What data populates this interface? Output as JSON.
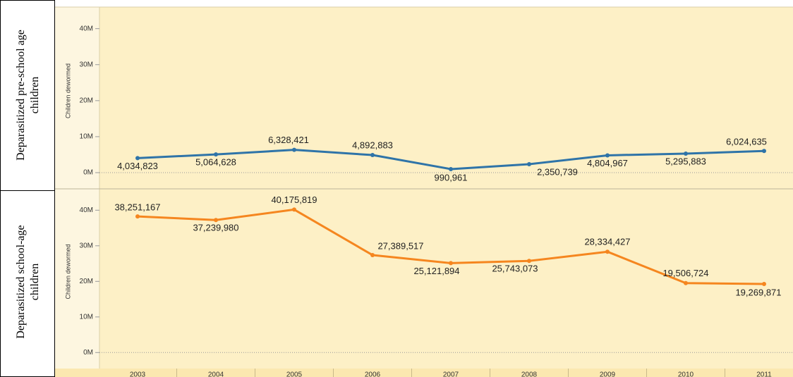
{
  "x_axis": {
    "categories": [
      "2003",
      "2004",
      "2005",
      "2006",
      "2007",
      "2008",
      "2009",
      "2010",
      "2011"
    ]
  },
  "chart_data": [
    {
      "type": "line",
      "panel_label": [
        "Deparasitized pre-school age",
        "children"
      ],
      "ylabel": "Children dewormed",
      "ylim": [
        -4500000,
        46000000
      ],
      "yticks": [
        {
          "value": 0,
          "label": "0M"
        },
        {
          "value": 10000000,
          "label": "10M"
        },
        {
          "value": 20000000,
          "label": "20M"
        },
        {
          "value": 30000000,
          "label": "30M"
        },
        {
          "value": 40000000,
          "label": "40M"
        }
      ],
      "series": [
        {
          "name": "Pre-school age children",
          "color": "#2f74a8",
          "values": [
            4034823,
            5064628,
            6328421,
            4892883,
            990961,
            2350739,
            4804967,
            5295883,
            6024635
          ],
          "value_labels": [
            "4,034,823",
            "5,064,628",
            "6,328,421",
            "4,892,883",
            "990,961",
            "2,350,739",
            "4,804,967",
            "5,295,883",
            "6,024,635"
          ]
        }
      ]
    },
    {
      "type": "line",
      "panel_label": [
        "Deparasitized school-age",
        "children"
      ],
      "ylabel": "Children dewormed",
      "ylim": [
        -4500000,
        46000000
      ],
      "yticks": [
        {
          "value": 0,
          "label": "0M"
        },
        {
          "value": 10000000,
          "label": "10M"
        },
        {
          "value": 20000000,
          "label": "20M"
        },
        {
          "value": 30000000,
          "label": "30M"
        },
        {
          "value": 40000000,
          "label": "40M"
        }
      ],
      "series": [
        {
          "name": "School-age children",
          "color": "#f5861f",
          "values": [
            38251167,
            37239980,
            40175819,
            27389517,
            25121894,
            25743073,
            28334427,
            19506724,
            19269871
          ],
          "value_labels": [
            "38,251,167",
            "37,239,980",
            "40,175,819",
            "27,389,517",
            "25,121,894",
            "25,743,073",
            "28,334,427",
            "19,506,724",
            "19,269,871"
          ]
        }
      ]
    }
  ]
}
